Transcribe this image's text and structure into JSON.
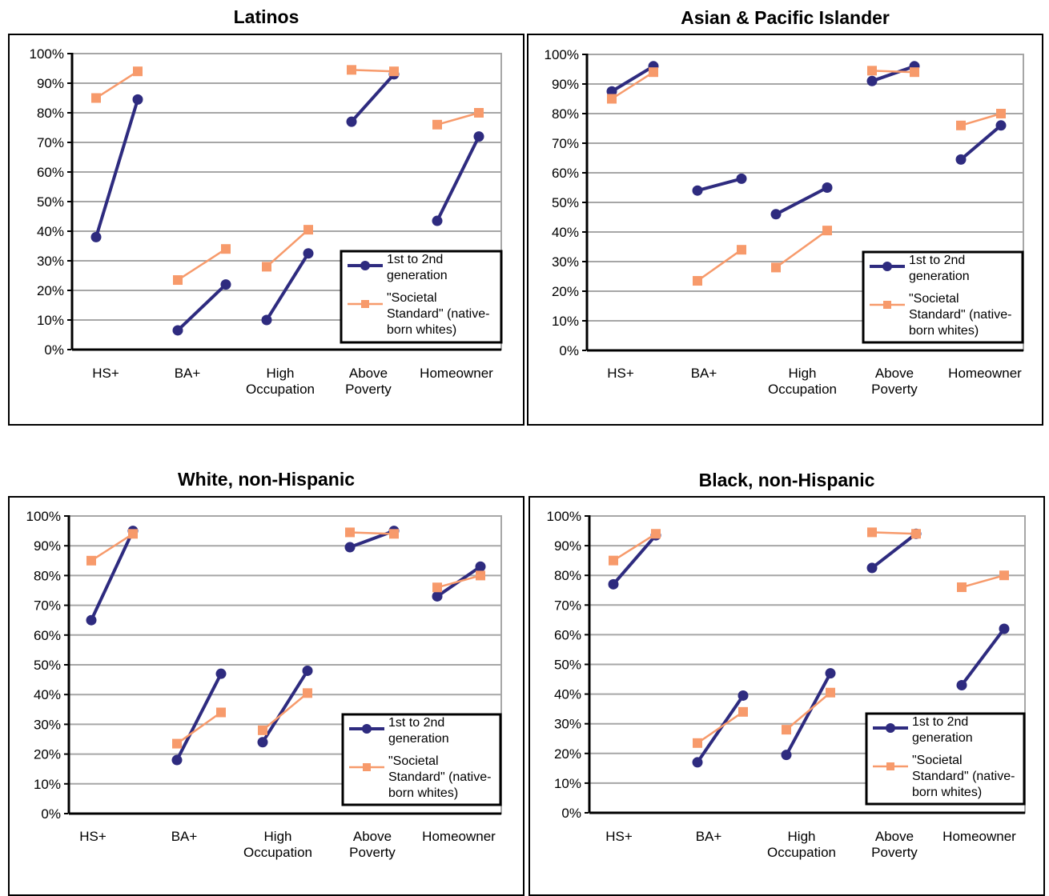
{
  "chart_data": [
    {
      "type": "line",
      "title": "Latinos",
      "categories": [
        "HS+",
        "BA+",
        "High Occupation",
        "Above Poverty",
        "Homeowner"
      ],
      "category_labels": [
        [
          "HS+"
        ],
        [
          "BA+"
        ],
        [
          "High",
          "Occupation"
        ],
        [
          "Above",
          "Poverty"
        ],
        [
          "Homeowner"
        ]
      ],
      "yticks": [
        "0%",
        "10%",
        "20%",
        "30%",
        "40%",
        "50%",
        "60%",
        "70%",
        "80%",
        "90%",
        "100%"
      ],
      "ylim": [
        0,
        100
      ],
      "grid": true,
      "legend_position": "bottom-right",
      "series": [
        {
          "name": "1st to 2nd generation",
          "legend_lines": [
            "1st to 2nd",
            "generation"
          ],
          "color": "#2e2b7f",
          "marker": "circle",
          "values": [
            [
              38,
              84.5
            ],
            [
              6.5,
              22
            ],
            [
              10,
              32.5
            ],
            [
              77,
              93
            ],
            [
              43.5,
              72
            ]
          ]
        },
        {
          "name": "\"Societal Standard\" (native-born whites)",
          "legend_lines": [
            "\"Societal",
            "Standard\" (native-",
            "born whites)"
          ],
          "color": "#f79a6b",
          "marker": "square",
          "values": [
            [
              85,
              94
            ],
            [
              23.5,
              34
            ],
            [
              28,
              40.5
            ],
            [
              94.5,
              94
            ],
            [
              76,
              80
            ]
          ]
        }
      ]
    },
    {
      "type": "line",
      "title": "Asian & Pacific Islander",
      "categories": [
        "HS+",
        "BA+",
        "High Occupation",
        "Above Poverty",
        "Homeowner"
      ],
      "category_labels": [
        [
          "HS+"
        ],
        [
          "BA+"
        ],
        [
          "High",
          "Occupation"
        ],
        [
          "Above",
          "Poverty"
        ],
        [
          "Homeowner"
        ]
      ],
      "yticks": [
        "0%",
        "10%",
        "20%",
        "30%",
        "40%",
        "50%",
        "60%",
        "70%",
        "80%",
        "90%",
        "100%"
      ],
      "ylim": [
        0,
        100
      ],
      "grid": true,
      "legend_position": "bottom-right",
      "series": [
        {
          "name": "1st to 2nd generation",
          "legend_lines": [
            "1st to 2nd",
            "generation"
          ],
          "color": "#2e2b7f",
          "marker": "circle",
          "values": [
            [
              87.5,
              96
            ],
            [
              54,
              58
            ],
            [
              46,
              55
            ],
            [
              91,
              96
            ],
            [
              64.5,
              76
            ]
          ]
        },
        {
          "name": "\"Societal Standard\" (native-born whites)",
          "legend_lines": [
            "\"Societal",
            "Standard\" (native-",
            "born whites)"
          ],
          "color": "#f79a6b",
          "marker": "square",
          "values": [
            [
              85,
              94
            ],
            [
              23.5,
              34
            ],
            [
              28,
              40.5
            ],
            [
              94.5,
              94
            ],
            [
              76,
              80
            ]
          ]
        }
      ]
    },
    {
      "type": "line",
      "title": "White, non-Hispanic",
      "categories": [
        "HS+",
        "BA+",
        "High Occupation",
        "Above Poverty",
        "Homeowner"
      ],
      "category_labels": [
        [
          "HS+"
        ],
        [
          "BA+"
        ],
        [
          "High",
          "Occupation"
        ],
        [
          "Above",
          "Poverty"
        ],
        [
          "Homeowner"
        ]
      ],
      "yticks": [
        "0%",
        "10%",
        "20%",
        "30%",
        "40%",
        "50%",
        "60%",
        "70%",
        "80%",
        "90%",
        "100%"
      ],
      "ylim": [
        0,
        100
      ],
      "grid": true,
      "legend_position": "bottom-right",
      "series": [
        {
          "name": "1st to 2nd generation",
          "legend_lines": [
            "1st to 2nd",
            "generation"
          ],
          "color": "#2e2b7f",
          "marker": "circle",
          "values": [
            [
              65,
              95
            ],
            [
              18,
              47
            ],
            [
              24,
              48
            ],
            [
              89.5,
              95
            ],
            [
              73,
              83
            ]
          ]
        },
        {
          "name": "\"Societal Standard\" (native-born whites)",
          "legend_lines": [
            "\"Societal",
            "Standard\" (native-",
            "born whites)"
          ],
          "color": "#f79a6b",
          "marker": "square",
          "values": [
            [
              85,
              94
            ],
            [
              23.5,
              34
            ],
            [
              28,
              40.5
            ],
            [
              94.5,
              94
            ],
            [
              76,
              80
            ]
          ]
        }
      ]
    },
    {
      "type": "line",
      "title": "Black, non-Hispanic",
      "categories": [
        "HS+",
        "BA+",
        "High Occupation",
        "Above Poverty",
        "Homeowner"
      ],
      "category_labels": [
        [
          "HS+"
        ],
        [
          "BA+"
        ],
        [
          "High",
          "Occupation"
        ],
        [
          "Above",
          "Poverty"
        ],
        [
          "Homeowner"
        ]
      ],
      "yticks": [
        "0%",
        "10%",
        "20%",
        "30%",
        "40%",
        "50%",
        "60%",
        "70%",
        "80%",
        "90%",
        "100%"
      ],
      "ylim": [
        0,
        100
      ],
      "grid": true,
      "legend_position": "bottom-right",
      "series": [
        {
          "name": "1st to 2nd generation",
          "legend_lines": [
            "1st to 2nd",
            "generation"
          ],
          "color": "#2e2b7f",
          "marker": "circle",
          "values": [
            [
              77,
              93.5
            ],
            [
              17,
              39.5
            ],
            [
              19.5,
              47
            ],
            [
              82.5,
              94
            ],
            [
              43,
              62
            ]
          ]
        },
        {
          "name": "\"Societal Standard\" (native-born whites)",
          "legend_lines": [
            "\"Societal",
            "Standard\" (native-",
            "born whites)"
          ],
          "color": "#f79a6b",
          "marker": "square",
          "values": [
            [
              85,
              94
            ],
            [
              23.5,
              34
            ],
            [
              28,
              40.5
            ],
            [
              94.5,
              94
            ],
            [
              76,
              80
            ]
          ]
        }
      ]
    }
  ]
}
